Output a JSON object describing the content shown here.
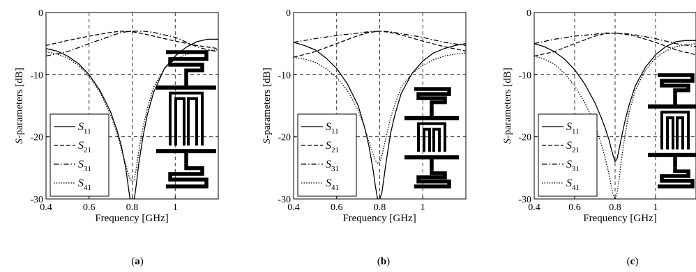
{
  "chart_data": [
    {
      "type": "line",
      "panel_label": "a",
      "xlabel": "Frequency [GHz]",
      "ylabel_italic": "S",
      "ylabel_rest": "-parameters [dB]",
      "xlim": [
        0.4,
        1.2
      ],
      "ylim": [
        -30,
        0
      ],
      "xticks": [
        0.4,
        0.6,
        0.8,
        1
      ],
      "xtick_labels": [
        "0.4",
        "0.6",
        "0.8",
        "1"
      ],
      "yticks": [
        0,
        -10,
        -20,
        -30
      ],
      "ytick_labels": [
        "0",
        "-10",
        "-20",
        "-30"
      ],
      "grid": true,
      "legend_position": "bottom-left",
      "series": [
        {
          "name": "S11",
          "label_main": "S",
          "label_sub": "11",
          "style": "solid",
          "x": [
            0.4,
            0.45,
            0.5,
            0.55,
            0.6,
            0.65,
            0.7,
            0.73,
            0.75,
            0.77,
            0.78,
            0.79,
            0.8,
            0.81,
            0.82,
            0.83,
            0.85,
            0.87,
            0.9,
            0.95,
            1.0,
            1.05,
            1.1,
            1.15,
            1.2
          ],
          "y": [
            -5.8,
            -6.2,
            -7.0,
            -8.2,
            -10.0,
            -12.5,
            -16.0,
            -19.0,
            -21.5,
            -25.0,
            -27.5,
            -30.0,
            -30.0,
            -30.0,
            -27.5,
            -24.5,
            -20.0,
            -16.5,
            -12.8,
            -9.0,
            -7.0,
            -5.6,
            -4.7,
            -4.3,
            -4.3
          ]
        },
        {
          "name": "S21",
          "label_main": "S",
          "label_sub": "21",
          "style": "dashed",
          "x": [
            0.4,
            0.5,
            0.6,
            0.7,
            0.75,
            0.8,
            0.85,
            0.9,
            1.0,
            1.1,
            1.2
          ],
          "y": [
            -5.3,
            -4.5,
            -3.8,
            -3.2,
            -3.0,
            -3.1,
            -3.4,
            -3.8,
            -4.6,
            -5.3,
            -5.8
          ]
        },
        {
          "name": "S31",
          "label_main": "S",
          "label_sub": "31",
          "style": "dashdot",
          "x": [
            0.4,
            0.5,
            0.6,
            0.7,
            0.75,
            0.8,
            0.85,
            0.9,
            1.0,
            1.1,
            1.15,
            1.2
          ],
          "y": [
            -7.0,
            -6.3,
            -5.0,
            -3.8,
            -3.2,
            -3.0,
            -3.0,
            -3.2,
            -4.0,
            -5.5,
            -6.0,
            -6.3
          ]
        },
        {
          "name": "S41",
          "label_main": "S",
          "label_sub": "41",
          "style": "dotted",
          "x": [
            0.4,
            0.45,
            0.5,
            0.55,
            0.6,
            0.65,
            0.7,
            0.73,
            0.75,
            0.77,
            0.78,
            0.79,
            0.8,
            0.81,
            0.82,
            0.83,
            0.85,
            0.87,
            0.9,
            0.95,
            1.0,
            1.05,
            1.1,
            1.15,
            1.2
          ],
          "y": [
            -6.3,
            -6.7,
            -7.3,
            -8.5,
            -10.3,
            -12.8,
            -16.5,
            -19.5,
            -22.0,
            -24.5,
            -25.8,
            -26.8,
            -27.2,
            -26.8,
            -25.0,
            -22.5,
            -18.5,
            -15.5,
            -12.0,
            -9.0,
            -7.5,
            -6.8,
            -6.3,
            -6.1,
            -6.0
          ]
        }
      ]
    },
    {
      "type": "line",
      "panel_label": "b",
      "xlabel": "Frequency [GHz]",
      "ylabel_italic": "S",
      "ylabel_rest": "-parameters [dB]",
      "xlim": [
        0.4,
        1.2
      ],
      "ylim": [
        -30,
        0
      ],
      "xticks": [
        0.4,
        0.6,
        0.8,
        1
      ],
      "xtick_labels": [
        "0.4",
        "0.6",
        "0.8",
        "1"
      ],
      "yticks": [
        0,
        -10,
        -20,
        -30
      ],
      "ytick_labels": [
        "0",
        "-10",
        "-20",
        "-30"
      ],
      "grid": true,
      "legend_position": "bottom-left",
      "series": [
        {
          "name": "S11",
          "label_main": "S",
          "label_sub": "11",
          "style": "solid",
          "x": [
            0.4,
            0.45,
            0.5,
            0.55,
            0.6,
            0.65,
            0.7,
            0.73,
            0.75,
            0.77,
            0.78,
            0.79,
            0.8,
            0.81,
            0.82,
            0.83,
            0.85,
            0.87,
            0.9,
            0.95,
            1.0,
            1.05,
            1.1,
            1.15,
            1.2
          ],
          "y": [
            -4.8,
            -5.3,
            -6.0,
            -7.3,
            -9.0,
            -11.5,
            -15.0,
            -18.5,
            -21.5,
            -25.5,
            -28.0,
            -30.0,
            -30.0,
            -29.0,
            -26.5,
            -24.0,
            -19.5,
            -16.5,
            -13.0,
            -9.8,
            -7.8,
            -6.5,
            -5.8,
            -5.3,
            -5.0
          ]
        },
        {
          "name": "S21",
          "label_main": "S",
          "label_sub": "21",
          "style": "dashed",
          "x": [
            0.4,
            0.5,
            0.6,
            0.7,
            0.75,
            0.8,
            0.85,
            0.9,
            1.0,
            1.1,
            1.2
          ],
          "y": [
            -7.2,
            -6.3,
            -5.0,
            -3.7,
            -3.2,
            -3.0,
            -3.2,
            -3.6,
            -4.6,
            -5.5,
            -6.2
          ]
        },
        {
          "name": "S31",
          "label_main": "S",
          "label_sub": "31",
          "style": "dashdot",
          "x": [
            0.4,
            0.5,
            0.6,
            0.7,
            0.75,
            0.8,
            0.85,
            0.9,
            1.0,
            1.1,
            1.2
          ],
          "y": [
            -4.8,
            -4.2,
            -3.7,
            -3.3,
            -3.1,
            -3.0,
            -3.1,
            -3.4,
            -4.0,
            -4.8,
            -5.3
          ]
        },
        {
          "name": "S41",
          "label_main": "S",
          "label_sub": "41",
          "style": "dotted",
          "x": [
            0.4,
            0.45,
            0.5,
            0.55,
            0.6,
            0.65,
            0.7,
            0.73,
            0.75,
            0.77,
            0.78,
            0.79,
            0.8,
            0.81,
            0.82,
            0.83,
            0.85,
            0.87,
            0.9,
            0.95,
            1.0,
            1.05,
            1.1,
            1.15,
            1.2
          ],
          "y": [
            -7.2,
            -7.5,
            -8.0,
            -9.0,
            -10.5,
            -12.5,
            -15.8,
            -18.5,
            -20.8,
            -22.8,
            -23.8,
            -24.3,
            -24.0,
            -23.0,
            -21.5,
            -20.0,
            -17.0,
            -14.8,
            -12.0,
            -9.8,
            -8.5,
            -7.6,
            -7.0,
            -6.7,
            -6.5
          ]
        }
      ]
    },
    {
      "type": "line",
      "panel_label": "c",
      "xlabel": "Frequency [GHz]",
      "ylabel_italic": "S",
      "ylabel_rest": "-parameters [dB]",
      "xlim": [
        0.4,
        1.2
      ],
      "ylim": [
        -30,
        0
      ],
      "xticks": [
        0.4,
        0.6,
        0.8,
        1
      ],
      "xtick_labels": [
        "0.4",
        "0.6",
        "0.8",
        "1"
      ],
      "yticks": [
        0,
        -10,
        -20,
        -30
      ],
      "ytick_labels": [
        "0",
        "-10",
        "-20",
        "-30"
      ],
      "grid": true,
      "legend_position": "bottom-left",
      "series": [
        {
          "name": "S11",
          "label_main": "S",
          "label_sub": "11",
          "style": "solid",
          "x": [
            0.4,
            0.45,
            0.5,
            0.55,
            0.6,
            0.65,
            0.7,
            0.73,
            0.75,
            0.77,
            0.78,
            0.79,
            0.8,
            0.81,
            0.82,
            0.83,
            0.85,
            0.87,
            0.9,
            0.95,
            1.0,
            1.05,
            1.1,
            1.15,
            1.2
          ],
          "y": [
            -5.0,
            -5.5,
            -6.3,
            -7.5,
            -9.2,
            -11.5,
            -14.5,
            -16.8,
            -18.5,
            -20.5,
            -21.8,
            -23.0,
            -24.0,
            -23.5,
            -22.0,
            -20.3,
            -17.3,
            -14.8,
            -11.8,
            -8.8,
            -6.8,
            -5.5,
            -4.7,
            -4.5,
            -4.5
          ]
        },
        {
          "name": "S21",
          "label_main": "S",
          "label_sub": "21",
          "style": "dashed",
          "x": [
            0.4,
            0.5,
            0.6,
            0.7,
            0.75,
            0.8,
            0.85,
            0.9,
            1.0,
            1.1,
            1.2
          ],
          "y": [
            -7.0,
            -6.3,
            -5.0,
            -3.8,
            -3.4,
            -3.3,
            -3.5,
            -3.8,
            -4.8,
            -6.0,
            -6.8
          ]
        },
        {
          "name": "S31",
          "label_main": "S",
          "label_sub": "31",
          "style": "dashdot",
          "x": [
            0.4,
            0.5,
            0.6,
            0.7,
            0.75,
            0.8,
            0.85,
            0.9,
            1.0,
            1.1,
            1.2
          ],
          "y": [
            -5.0,
            -4.3,
            -3.8,
            -3.5,
            -3.3,
            -3.3,
            -3.4,
            -3.6,
            -4.2,
            -5.0,
            -5.5
          ]
        },
        {
          "name": "S41",
          "label_main": "S",
          "label_sub": "41",
          "style": "dotted",
          "x": [
            0.4,
            0.45,
            0.5,
            0.55,
            0.6,
            0.65,
            0.7,
            0.73,
            0.75,
            0.77,
            0.78,
            0.79,
            0.8,
            0.81,
            0.82,
            0.83,
            0.85,
            0.87,
            0.9,
            0.95,
            1.0,
            1.05,
            1.1,
            1.15,
            1.2
          ],
          "y": [
            -7.0,
            -7.5,
            -8.3,
            -9.8,
            -11.8,
            -14.5,
            -18.0,
            -21.0,
            -23.3,
            -26.0,
            -27.8,
            -29.3,
            -30.0,
            -29.0,
            -26.8,
            -24.0,
            -19.5,
            -16.0,
            -12.5,
            -9.3,
            -7.3,
            -6.2,
            -5.5,
            -5.2,
            -5.0
          ]
        }
      ]
    }
  ]
}
